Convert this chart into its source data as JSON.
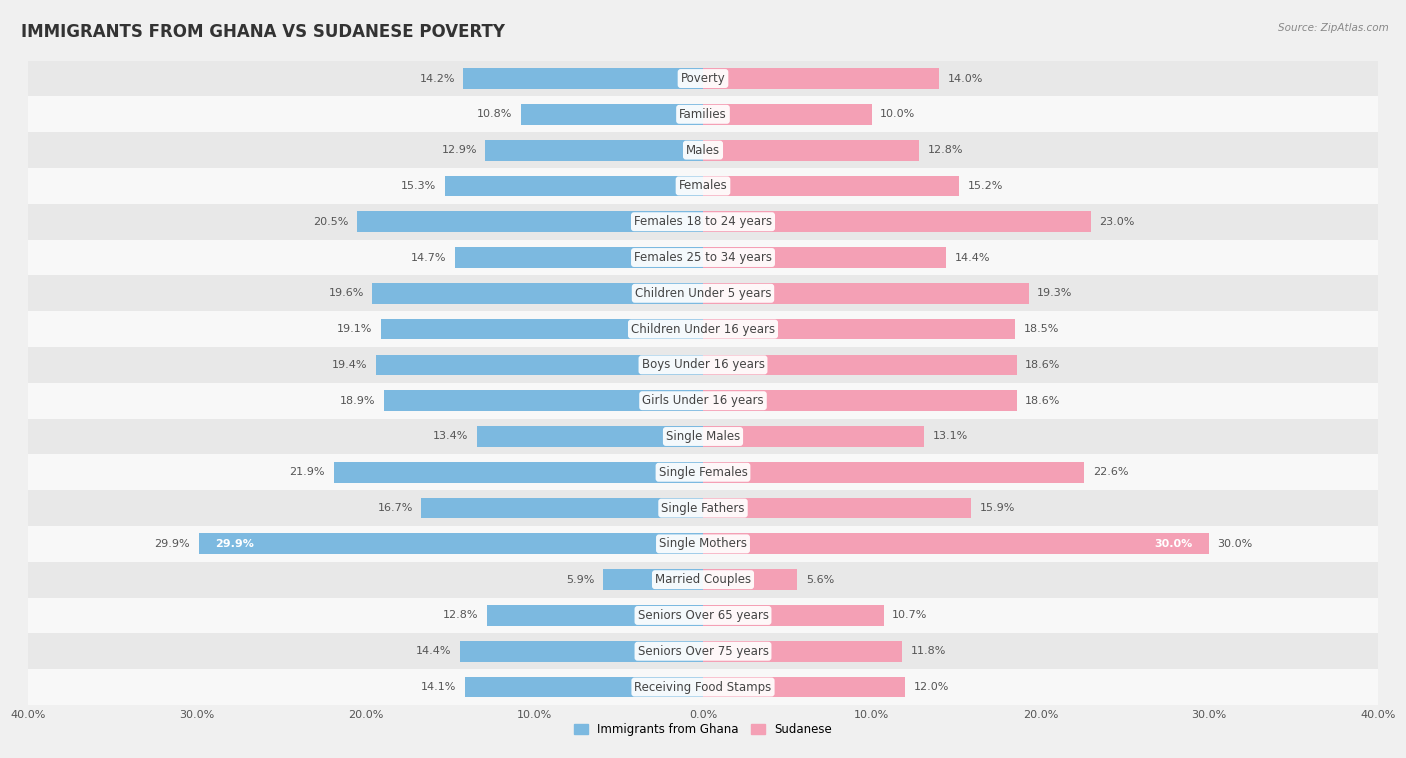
{
  "title": "IMMIGRANTS FROM GHANA VS SUDANESE POVERTY",
  "source": "Source: ZipAtlas.com",
  "categories": [
    "Poverty",
    "Families",
    "Males",
    "Females",
    "Females 18 to 24 years",
    "Females 25 to 34 years",
    "Children Under 5 years",
    "Children Under 16 years",
    "Boys Under 16 years",
    "Girls Under 16 years",
    "Single Males",
    "Single Females",
    "Single Fathers",
    "Single Mothers",
    "Married Couples",
    "Seniors Over 65 years",
    "Seniors Over 75 years",
    "Receiving Food Stamps"
  ],
  "ghana_values": [
    14.2,
    10.8,
    12.9,
    15.3,
    20.5,
    14.7,
    19.6,
    19.1,
    19.4,
    18.9,
    13.4,
    21.9,
    16.7,
    29.9,
    5.9,
    12.8,
    14.4,
    14.1
  ],
  "sudanese_values": [
    14.0,
    10.0,
    12.8,
    15.2,
    23.0,
    14.4,
    19.3,
    18.5,
    18.6,
    18.6,
    13.1,
    22.6,
    15.9,
    30.0,
    5.6,
    10.7,
    11.8,
    12.0
  ],
  "ghana_color": "#7cb9e0",
  "sudanese_color": "#f4a0b5",
  "axis_limit": 40.0,
  "bar_height": 0.58,
  "background_color": "#f0f0f0",
  "row_colors": [
    "#e8e8e8",
    "#f8f8f8"
  ],
  "legend_labels": [
    "Immigrants from Ghana",
    "Sudanese"
  ],
  "title_fontsize": 12,
  "label_fontsize": 8.5,
  "value_fontsize": 8,
  "axis_label_fontsize": 8
}
